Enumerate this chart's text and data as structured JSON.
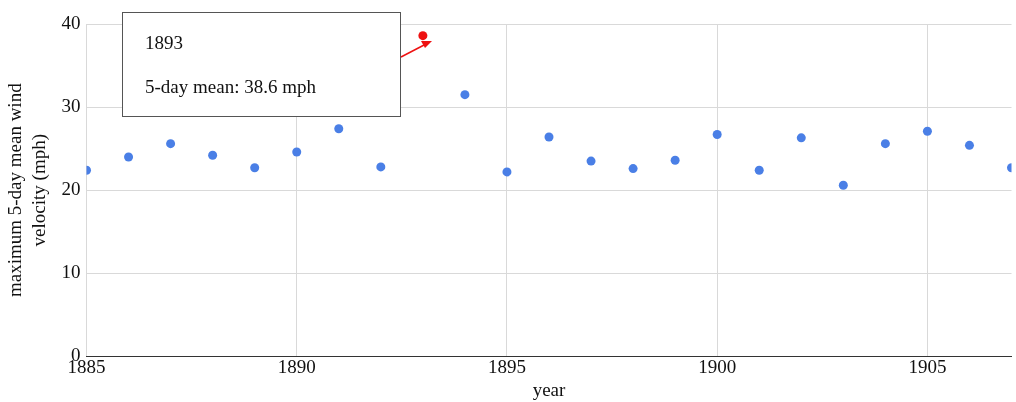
{
  "chart_data": {
    "type": "scatter",
    "xlabel": "year",
    "ylabel": "maximum 5-day mean wind velocity (mph)",
    "x": [
      1885,
      1886,
      1887,
      1888,
      1889,
      1890,
      1891,
      1892,
      1893,
      1894,
      1895,
      1896,
      1897,
      1898,
      1899,
      1900,
      1901,
      1902,
      1903,
      1904,
      1905,
      1906,
      1907
    ],
    "values": [
      22.4,
      24.0,
      25.6,
      24.2,
      22.7,
      24.6,
      27.4,
      22.8,
      38.6,
      31.5,
      22.2,
      26.4,
      23.5,
      22.6,
      23.6,
      26.7,
      22.4,
      26.3,
      20.6,
      25.6,
      27.1,
      25.4,
      22.7
    ],
    "colors": [
      "#4a7fe6",
      "#4a7fe6",
      "#4a7fe6",
      "#4a7fe6",
      "#4a7fe6",
      "#4a7fe6",
      "#4a7fe6",
      "#4a7fe6",
      "#ee1111",
      "#4a7fe6",
      "#4a7fe6",
      "#4a7fe6",
      "#4a7fe6",
      "#4a7fe6",
      "#4a7fe6",
      "#4a7fe6",
      "#4a7fe6",
      "#4a7fe6",
      "#4a7fe6",
      "#4a7fe6",
      "#4a7fe6",
      "#4a7fe6",
      "#4a7fe6"
    ],
    "xlim": [
      1885,
      1907
    ],
    "xticks": [
      1885,
      1890,
      1895,
      1900,
      1905
    ],
    "ylim": [
      0,
      40
    ],
    "yticks": [
      0,
      10,
      20,
      30,
      40
    ],
    "grid": true,
    "legend": false,
    "marker": "circle",
    "annotations": [
      "1893",
      "5-day mean: 38.6 mph"
    ]
  }
}
